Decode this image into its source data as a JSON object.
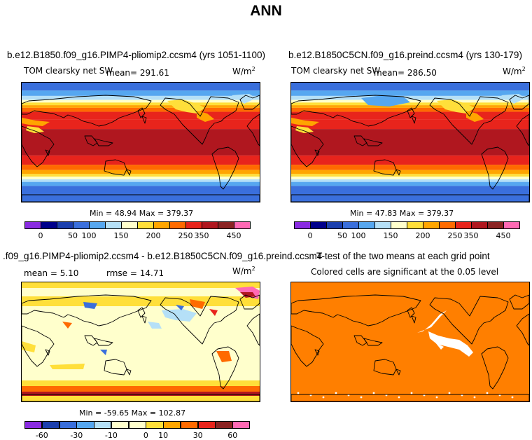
{
  "page_title": "ANN",
  "chart_data": [
    {
      "type": "heatmap",
      "title": "b.e12.B1850.f09_g16.PIMP4-pliomip2.ccsm4 (yrs 1051-1100)",
      "variable": "TOM clearsky net SW",
      "mean_label": "mean= 291.61",
      "units": "W/m",
      "units_exp": "2",
      "min": 48.94,
      "max": 379.37,
      "minmax_text": "Min =  48.94 Max = 379.37",
      "colorbar": {
        "levels": [
          "0",
          "50",
          "100",
          "150",
          "200",
          "250",
          "350",
          "450"
        ],
        "colors": [
          "#8a2be2",
          "#00008b",
          "#1c3fae",
          "#3a6fdc",
          "#56a7f0",
          "#b5e0f7",
          "#ffffcc",
          "#ffdf3a",
          "#ffa500",
          "#ff6a00",
          "#e8241c",
          "#b0171f",
          "#8b2323",
          "#ff69b4"
        ]
      }
    },
    {
      "type": "heatmap",
      "title": "b.e12.B1850C5CN.f09_g16.preind.ccsm4 (yrs 130-179)",
      "variable": "TOM clearsky net SW",
      "mean_label": "mean= 286.50",
      "units": "W/m",
      "units_exp": "2",
      "min": 47.83,
      "max": 379.37,
      "minmax_text": "Min =  47.83 Max = 379.37",
      "colorbar": {
        "levels": [
          "0",
          "50",
          "100",
          "150",
          "200",
          "250",
          "350",
          "450"
        ],
        "colors": [
          "#8a2be2",
          "#00008b",
          "#1c3fae",
          "#3a6fdc",
          "#56a7f0",
          "#b5e0f7",
          "#ffffcc",
          "#ffdf3a",
          "#ffa500",
          "#ff6a00",
          "#e8241c",
          "#b0171f",
          "#8b2323",
          "#ff69b4"
        ]
      }
    },
    {
      "type": "heatmap",
      "title": ".f09_g16.PIMP4-pliomip2.ccsm4 - b.e12.B1850C5CN.f09_g16.preind.ccsm4",
      "mean_text": "mean =   5.10",
      "rmse_text": "rmse =  14.71",
      "units": "W/m",
      "units_exp": "2",
      "min": -59.65,
      "max": 102.87,
      "minmax_text": "Min = -59.65 Max = 102.87",
      "colorbar": {
        "levels": [
          "-60",
          "-30",
          "-10",
          "0",
          "10",
          "30",
          "60"
        ],
        "colors": [
          "#8a2be2",
          "#1c3fae",
          "#3a6fdc",
          "#56a7f0",
          "#b5e0f7",
          "#ffffcc",
          "#ffffcc",
          "#ffdf3a",
          "#ffa500",
          "#ff6a00",
          "#e8241c",
          "#8b2323",
          "#ff69b4"
        ]
      }
    },
    {
      "type": "heatmap",
      "title": "T-test of the two means at each grid point",
      "subtitle": "Colored cells are significant at the 0.05 level",
      "fill_color": "#ff7f00"
    }
  ]
}
